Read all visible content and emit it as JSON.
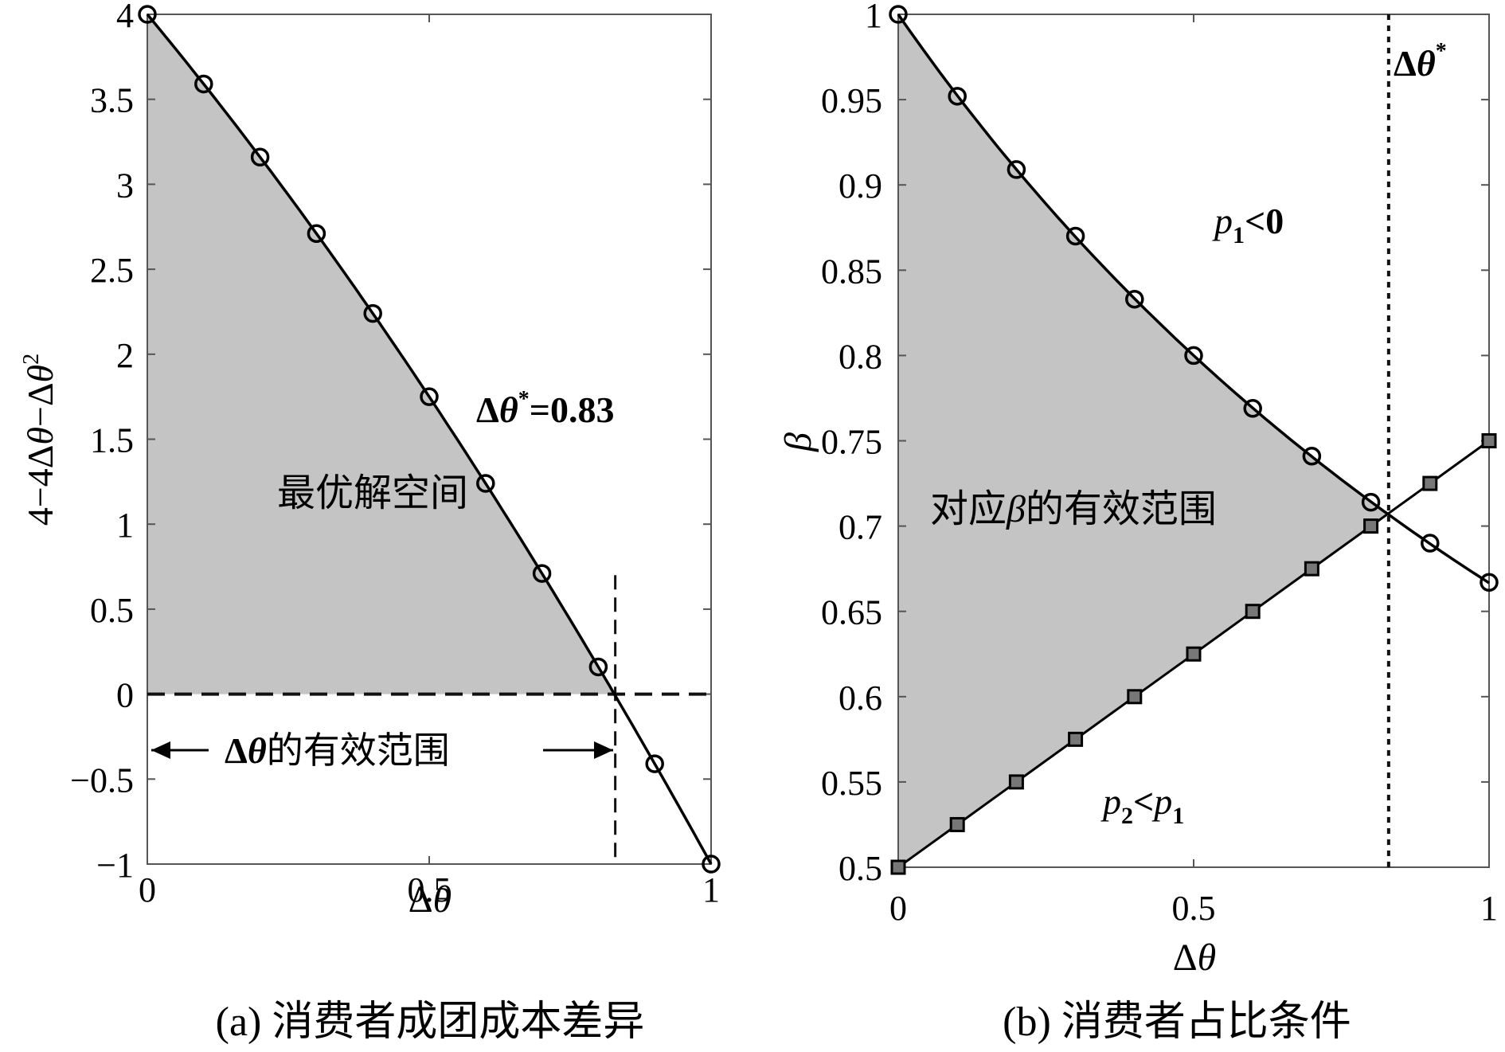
{
  "charts": [
    {
      "xlabel": "Δθ",
      "ylabel_parts": [
        "4−4Δ",
        "θ",
        "−Δ",
        "θ",
        "2"
      ],
      "caption": "(a) 消费者成团成本差异",
      "xticks": [
        "0",
        "0.5",
        "1"
      ],
      "yticks": [
        "4",
        "3.5",
        "3",
        "2.5",
        "2",
        "1.5",
        "1",
        "0.5",
        "0",
        "−0.5",
        "−1"
      ],
      "region_label": "最优解空间",
      "threshold_label": "Δθ*=0.83",
      "range_label": "Δθ的有效范围"
    },
    {
      "xlabel": "Δθ",
      "ylabel": "β",
      "caption": "(b) 消费者占比条件",
      "xticks": [
        "0",
        "0.5",
        "1"
      ],
      "yticks": [
        "1",
        "0.95",
        "0.9",
        "0.85",
        "0.8",
        "0.75",
        "0.7",
        "0.65",
        "0.6",
        "0.55",
        "0.5"
      ],
      "region_label": "对应β的有效范围",
      "threshold_label": "Δθ*",
      "p1_label": "p1<0",
      "p2_label": "p2<p1"
    }
  ],
  "chart_data": [
    {
      "type": "line",
      "xlabel": "Δθ",
      "ylabel": "4−4Δθ−Δθ²",
      "xlim": [
        0,
        1
      ],
      "ylim": [
        -1,
        4
      ],
      "grid": false,
      "series": [
        {
          "marker": "circle",
          "x": [
            0,
            0.1,
            0.2,
            0.3,
            0.4,
            0.5,
            0.6,
            0.7,
            0.8,
            0.9,
            1.0
          ],
          "y": [
            4,
            3.59,
            3.16,
            2.71,
            2.24,
            1.75,
            1.24,
            0.71,
            0.16,
            -0.41,
            -1
          ]
        }
      ],
      "reference_lines": {
        "horizontal_y": 0,
        "vertical_x": 0.83
      },
      "annotations": [
        "最优解空间",
        "Δθ*=0.83",
        "Δθ的有效范围"
      ],
      "shaded_region": "area under the curve and above y=0 for Δθ from 0 to 0.83"
    },
    {
      "type": "line",
      "xlabel": "Δθ",
      "ylabel": "β",
      "xlim": [
        0,
        1
      ],
      "ylim": [
        0.5,
        1
      ],
      "grid": false,
      "series": [
        {
          "marker": "circle",
          "x": [
            0,
            0.1,
            0.2,
            0.3,
            0.4,
            0.5,
            0.6,
            0.7,
            0.8,
            0.9,
            1.0
          ],
          "y": [
            1,
            0.952,
            0.909,
            0.87,
            0.833,
            0.8,
            0.769,
            0.741,
            0.714,
            0.69,
            0.667
          ]
        },
        {
          "marker": "square",
          "x": [
            0,
            0.1,
            0.2,
            0.3,
            0.4,
            0.5,
            0.6,
            0.7,
            0.8,
            0.9,
            1.0
          ],
          "y": [
            0.5,
            0.525,
            0.55,
            0.575,
            0.6,
            0.625,
            0.65,
            0.675,
            0.7,
            0.725,
            0.75
          ]
        }
      ],
      "reference_lines": {
        "vertical_x": 0.83
      },
      "annotations": [
        "对应β的有效范围",
        "p1<0",
        "p2<p1",
        "Δθ*"
      ],
      "shaded_region": "between the two curves for Δθ from 0 to their intersection"
    }
  ]
}
